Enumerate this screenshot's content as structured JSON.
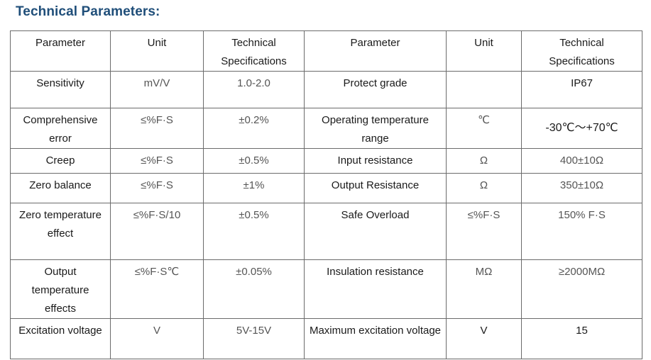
{
  "title": "Technical Parameters:",
  "headers": [
    "Parameter",
    "Unit",
    "Technical Specifications",
    "Parameter",
    "Unit",
    "Technical Specifications"
  ],
  "rows": [
    [
      "Sensitivity",
      "mV/V",
      "1.0-2.0",
      "Protect grade",
      "",
      "IP67"
    ],
    [
      "Comprehensive error",
      "≤%F·S",
      "±0.2%",
      "Operating temperature range",
      "℃",
      "-30℃～+70℃"
    ],
    [
      "Creep",
      "≤%F·S",
      "±0.5%",
      "Input resistance",
      "Ω",
      "400±10Ω"
    ],
    [
      "Zero balance",
      "≤%F·S",
      "±1%",
      "Output Resistance",
      "Ω",
      "350±10Ω"
    ],
    [
      "Zero temperature effect",
      "≤%F·S/10",
      "±0.5%",
      "Safe Overload",
      "≤%F·S",
      "150% F·S"
    ],
    [
      "Output temperature effects",
      "≤%F·S℃",
      "±0.05%",
      "Insulation resistance",
      "MΩ",
      "≥2000MΩ"
    ],
    [
      "Excitation voltage",
      "V",
      "5V-15V",
      "Maximum excitation voltage",
      "V",
      "15"
    ]
  ]
}
